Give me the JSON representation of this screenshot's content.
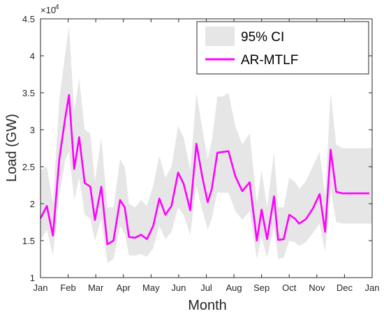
{
  "chart_data": {
    "type": "line",
    "xlabel": "Month",
    "ylabel": "Load (GW)",
    "y_exponent_label": "×10",
    "y_exponent_power": "4",
    "xlim": [
      0,
      12
    ],
    "ylim": [
      1,
      4.5
    ],
    "x_ticks": [
      0,
      1,
      2,
      3,
      4,
      5,
      6,
      7,
      8,
      9,
      10,
      11,
      12
    ],
    "x_tick_labels": [
      "Jan",
      "Feb",
      "Mar",
      "Apr",
      "May",
      "Jun",
      "Jul",
      "Aug",
      "Sep",
      "Oct",
      "Nov",
      "Dec",
      "Jan"
    ],
    "y_ticks": [
      1,
      1.5,
      2,
      2.5,
      3,
      3.5,
      4,
      4.5
    ],
    "y_tick_labels": [
      "1",
      "1.5",
      "2",
      "2.5",
      "3",
      "3.5",
      "4",
      "4.5"
    ],
    "grid": false,
    "legend_position": "top-right",
    "colors": {
      "line": "#ff00ff",
      "band": "#e6e6e6",
      "axes": "#262626"
    },
    "series": [
      {
        "name": "AR-MTLF",
        "x": [
          0,
          0.23,
          0.45,
          0.68,
          0.9,
          1.03,
          1.22,
          1.4,
          1.6,
          1.8,
          1.97,
          2.2,
          2.42,
          2.64,
          2.88,
          3.05,
          3.2,
          3.42,
          3.64,
          3.85,
          4.08,
          4.3,
          4.52,
          4.74,
          4.98,
          5.18,
          5.42,
          5.64,
          5.86,
          6.05,
          6.2,
          6.4,
          6.6,
          6.8,
          7.05,
          7.3,
          7.57,
          7.83,
          8.0,
          8.2,
          8.45,
          8.6,
          8.8,
          9.0,
          9.2,
          9.36,
          9.6,
          9.85,
          10.1,
          10.3,
          10.5,
          10.7,
          10.93,
          11.1,
          11.3,
          11.5,
          11.7,
          11.9
        ],
        "y": [
          1.8,
          1.97,
          1.57,
          2.6,
          3.17,
          3.47,
          2.47,
          2.9,
          2.28,
          2.23,
          1.78,
          2.23,
          1.45,
          1.5,
          2.05,
          1.95,
          1.55,
          1.54,
          1.58,
          1.52,
          1.7,
          2.07,
          1.85,
          1.97,
          2.42,
          2.27,
          1.91,
          2.81,
          2.35,
          2.02,
          2.2,
          2.69,
          2.7,
          2.71,
          2.37,
          2.17,
          2.29,
          1.5,
          1.92,
          1.52,
          2.1,
          1.51,
          1.52,
          1.85,
          1.8,
          1.73,
          1.79,
          1.93,
          2.13,
          1.62,
          2.73,
          2.16,
          2.14,
          2.14,
          2.14,
          2.14,
          2.14,
          2.14
        ]
      },
      {
        "name": "95% CI",
        "x": [
          0,
          0.23,
          0.45,
          0.68,
          0.9,
          1.03,
          1.22,
          1.4,
          1.6,
          1.8,
          1.97,
          2.2,
          2.42,
          2.64,
          2.88,
          3.05,
          3.2,
          3.42,
          3.64,
          3.85,
          4.08,
          4.3,
          4.52,
          4.74,
          4.98,
          5.18,
          5.42,
          5.64,
          5.86,
          6.05,
          6.2,
          6.4,
          6.6,
          6.8,
          7.05,
          7.3,
          7.57,
          7.83,
          8.0,
          8.2,
          8.45,
          8.6,
          8.8,
          9.0,
          9.2,
          9.36,
          9.6,
          9.85,
          10.1,
          10.3,
          10.5,
          10.7,
          10.93,
          11.1,
          11.3,
          11.5,
          11.7,
          12.0
        ],
        "lower": [
          1.5,
          1.65,
          1.3,
          2.1,
          2.6,
          2.7,
          2.05,
          2.35,
          1.85,
          1.8,
          1.5,
          1.8,
          1.2,
          1.25,
          1.7,
          1.6,
          1.3,
          1.3,
          1.32,
          1.28,
          1.4,
          1.7,
          1.52,
          1.62,
          1.95,
          1.85,
          1.58,
          2.25,
          1.9,
          1.65,
          1.8,
          2.15,
          2.15,
          2.15,
          1.9,
          1.78,
          1.9,
          1.25,
          1.55,
          1.27,
          1.7,
          1.25,
          1.27,
          1.5,
          1.48,
          1.43,
          1.48,
          1.6,
          1.73,
          1.35,
          2.2,
          1.75,
          1.73,
          1.73,
          1.73,
          1.73,
          1.73,
          1.73
        ],
        "upper": [
          2.45,
          2.5,
          2.0,
          3.4,
          4.05,
          4.4,
          3.25,
          3.7,
          3.0,
          2.95,
          2.3,
          2.9,
          1.95,
          1.95,
          2.6,
          2.5,
          2.0,
          1.95,
          2.05,
          1.97,
          2.25,
          2.65,
          2.35,
          2.5,
          3.05,
          2.9,
          2.45,
          3.5,
          3.0,
          2.6,
          2.85,
          3.45,
          3.45,
          3.5,
          3.05,
          2.8,
          2.95,
          2.0,
          2.45,
          1.95,
          2.7,
          1.95,
          1.95,
          2.35,
          2.3,
          2.2,
          2.3,
          2.5,
          2.7,
          2.1,
          3.5,
          2.8,
          2.75,
          2.75,
          2.75,
          2.75,
          2.75,
          2.75
        ]
      }
    ]
  }
}
